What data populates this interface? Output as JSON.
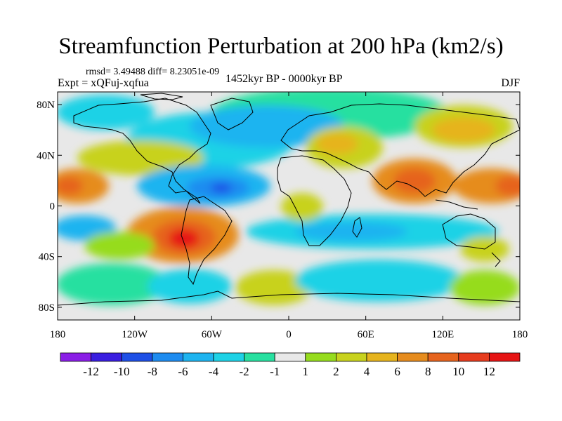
{
  "title": "Streamfunction Perturbation at 200 hPa (km2/s)",
  "stats_text": "rmsd= 3.49488 diff= 8.23051e-09",
  "experiment_text": "Expt = xQFuj-xqfua",
  "period_text": "1452kyr BP - 0000kyr BP",
  "season_text": "DJF",
  "map": {
    "projection": "cylindrical-equidistant",
    "lon_range": [
      -180,
      180
    ],
    "lat_range": [
      -90,
      90
    ],
    "x_ticks": [
      {
        "value": -180,
        "label": "180"
      },
      {
        "value": -120,
        "label": "120W"
      },
      {
        "value": -60,
        "label": "60W"
      },
      {
        "value": 0,
        "label": "0"
      },
      {
        "value": 60,
        "label": "60E"
      },
      {
        "value": 120,
        "label": "120E"
      },
      {
        "value": 180,
        "label": "180"
      }
    ],
    "y_ticks": [
      {
        "value": 80,
        "label": "80N"
      },
      {
        "value": 40,
        "label": "40N"
      },
      {
        "value": 0,
        "label": "0"
      },
      {
        "value": -40,
        "label": "40S"
      },
      {
        "value": -80,
        "label": "80S"
      }
    ],
    "background_color": "#e8e8e8",
    "coastline_color": "#000000"
  },
  "colorbar": {
    "labels": [
      "-12",
      "-10",
      "-8",
      "-6",
      "-4",
      "-2",
      "-1",
      "1",
      "2",
      "4",
      "6",
      "8",
      "10",
      "12"
    ],
    "colors": [
      "#8a1ee6",
      "#3a1ee0",
      "#1e50e6",
      "#1e8cf0",
      "#1eb4f0",
      "#1ed2e6",
      "#28e0a0",
      "#e8e8e8",
      "#96dc1e",
      "#c8d21e",
      "#e6b41e",
      "#e68c1e",
      "#e6641e",
      "#e63c1e",
      "#e61414"
    ]
  }
}
